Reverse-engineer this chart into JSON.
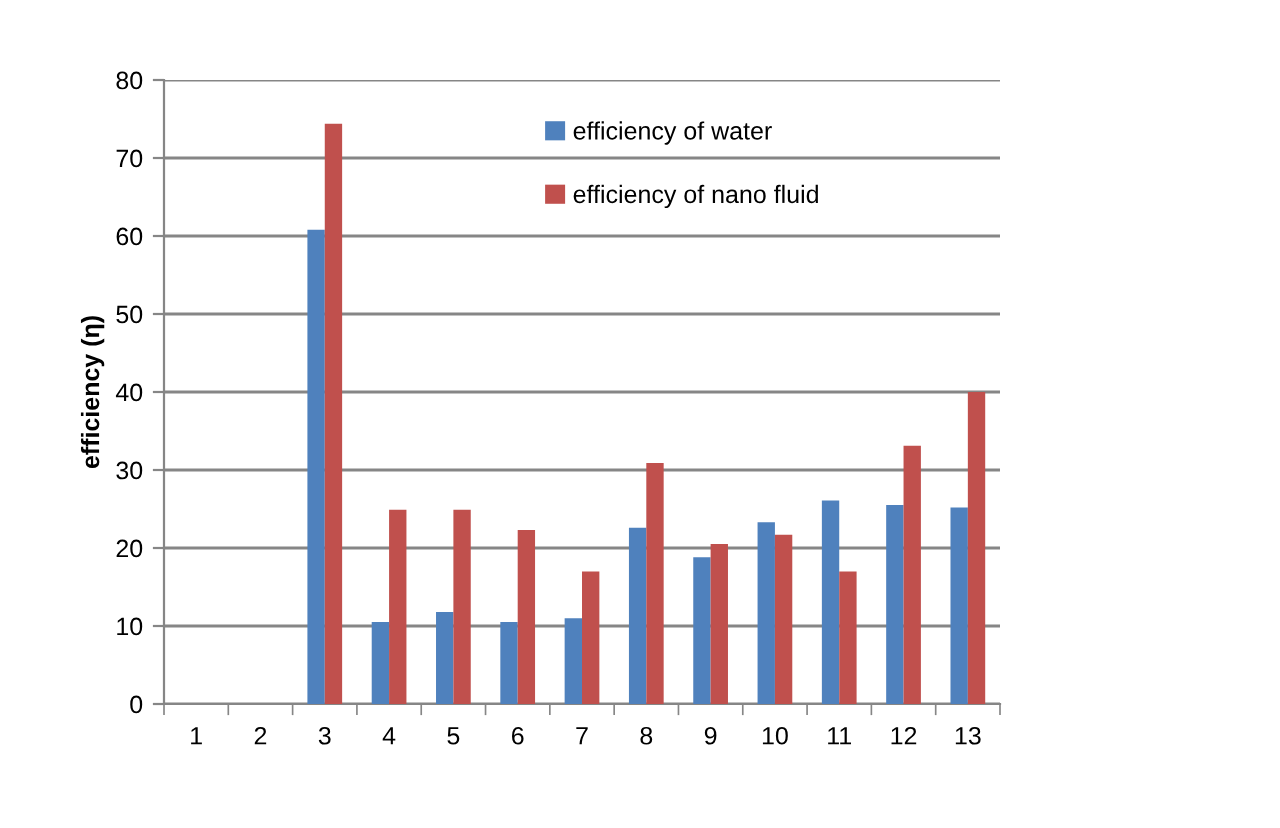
{
  "chart_data": {
    "type": "bar",
    "ylabel": "efficiency (η)",
    "categories": [
      "1",
      "2",
      "3",
      "4",
      "5",
      "6",
      "7",
      "8",
      "9",
      "10",
      "11",
      "12",
      "13"
    ],
    "series": [
      {
        "name": "efficiency of water",
        "color": "#4f81bd",
        "values": [
          null,
          null,
          60.8,
          10.5,
          11.8,
          10.5,
          11,
          22.6,
          18.8,
          23.3,
          26.1,
          25.5,
          25.2
        ]
      },
      {
        "name": "efficiency of nano fluid",
        "color": "#c0504d",
        "values": [
          null,
          null,
          74.4,
          24.9,
          24.9,
          22.3,
          17,
          30.9,
          20.5,
          21.7,
          17,
          33.1,
          40
        ]
      }
    ],
    "ylim": [
      0,
      80
    ],
    "yticks": [
      0,
      10,
      20,
      30,
      40,
      50,
      60,
      70,
      80
    ],
    "grid": "y",
    "legend": "top"
  }
}
